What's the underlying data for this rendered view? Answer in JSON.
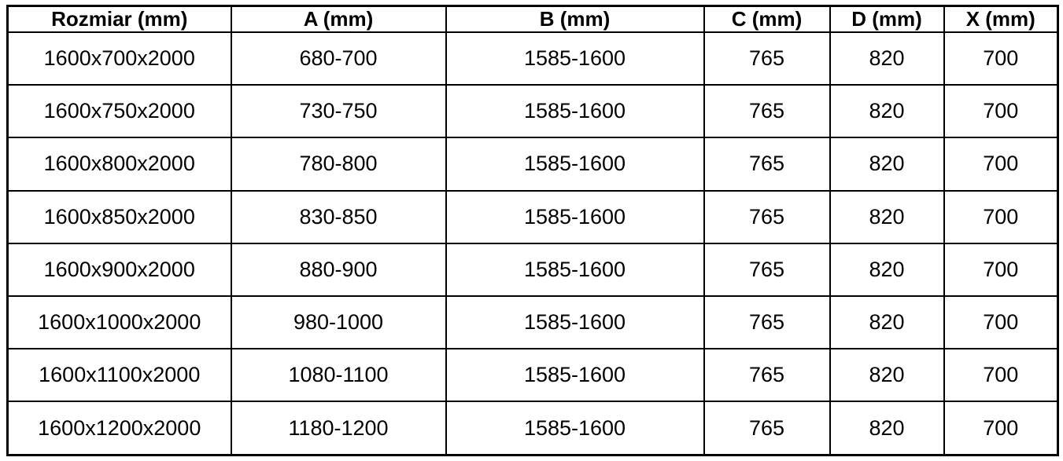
{
  "table": {
    "title": "shower-enclosure-dimensions-table",
    "colors": {
      "border": "#000000",
      "text": "#000000",
      "background": "#ffffff"
    },
    "columns": [
      {
        "label": "Rozmiar (mm)"
      },
      {
        "label": "A (mm)"
      },
      {
        "label": "B (mm)"
      },
      {
        "label": "C (mm)"
      },
      {
        "label": "D (mm)"
      },
      {
        "label": "X (mm)"
      }
    ],
    "rows": [
      [
        "1600x700x2000",
        "680-700",
        "1585-1600",
        "765",
        "820",
        "700"
      ],
      [
        "1600x750x2000",
        "730-750",
        "1585-1600",
        "765",
        "820",
        "700"
      ],
      [
        "1600x800x2000",
        "780-800",
        "1585-1600",
        "765",
        "820",
        "700"
      ],
      [
        "1600x850x2000",
        "830-850",
        "1585-1600",
        "765",
        "820",
        "700"
      ],
      [
        "1600x900x2000",
        "880-900",
        "1585-1600",
        "765",
        "820",
        "700"
      ],
      [
        "1600x1000x2000",
        "980-1000",
        "1585-1600",
        "765",
        "820",
        "700"
      ],
      [
        "1600x1100x2000",
        "1080-1100",
        "1585-1600",
        "765",
        "820",
        "700"
      ],
      [
        "1600x1200x2000",
        "1180-1200",
        "1585-1600",
        "765",
        "820",
        "700"
      ]
    ]
  }
}
